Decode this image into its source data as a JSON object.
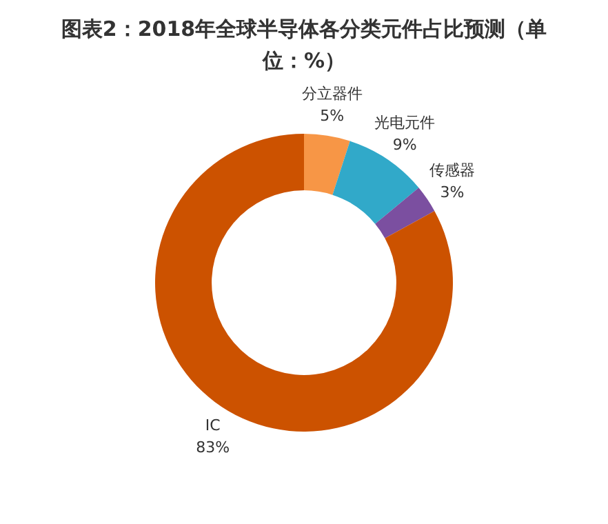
{
  "chart_data": {
    "type": "donut",
    "title": "图表2：2018年全球半导体各分类元件占比预测（单位：%）",
    "categories": [
      "分立器件",
      "光电元件",
      "传感器",
      "IC"
    ],
    "values": [
      5,
      9,
      3,
      83
    ],
    "colors": [
      "#f79646",
      "#31a9c9",
      "#7b4fa0",
      "#cc5200"
    ],
    "value_labels": [
      "5%",
      "9%",
      "3%",
      "83%"
    ]
  }
}
